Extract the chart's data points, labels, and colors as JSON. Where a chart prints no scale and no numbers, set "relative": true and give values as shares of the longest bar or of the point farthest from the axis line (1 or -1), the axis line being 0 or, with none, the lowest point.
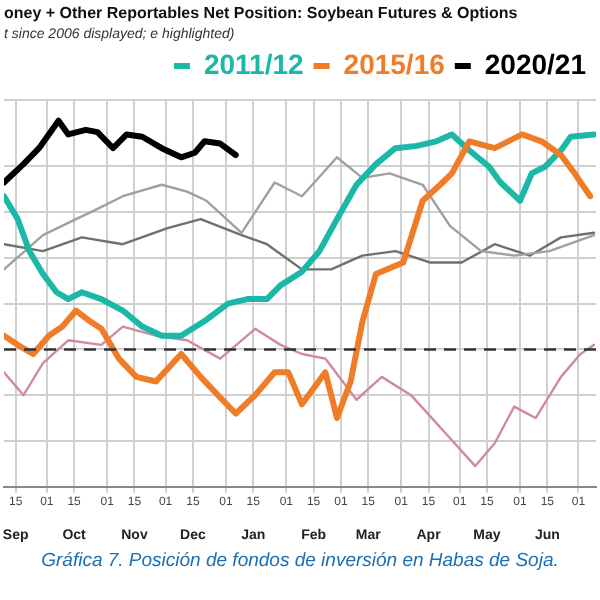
{
  "chart_data": {
    "type": "line",
    "title": "oney + Other Reportables Net Position: Soybean Futures & Options",
    "subtitle": "t since 2006 displayed; e highlighted)",
    "relative": true,
    "grid": true,
    "legend": "top right",
    "marker": "none",
    "line_style": "solid",
    "xlim": [
      "2020-09-09",
      "2021-07-10"
    ],
    "xticks": [
      {
        "value": "2020-09-15",
        "label": "15"
      },
      {
        "value": "2020-10-01",
        "label": "01"
      },
      {
        "value": "2020-10-15",
        "label": "15"
      },
      {
        "value": "2020-11-01",
        "label": "01"
      },
      {
        "value": "2020-11-15",
        "label": "15"
      },
      {
        "value": "2020-12-01",
        "label": "01"
      },
      {
        "value": "2020-12-15",
        "label": "15"
      },
      {
        "value": "2021-01-01",
        "label": "01"
      },
      {
        "value": "2021-01-15",
        "label": "15"
      },
      {
        "value": "2021-02-01",
        "label": "01"
      },
      {
        "value": "2021-02-15",
        "label": "15"
      },
      {
        "value": "2021-03-01",
        "label": "01"
      },
      {
        "value": "2021-03-15",
        "label": "15"
      },
      {
        "value": "2021-04-01",
        "label": "01"
      },
      {
        "value": "2021-04-15",
        "label": "15"
      },
      {
        "value": "2021-05-01",
        "label": "01"
      },
      {
        "value": "2021-05-15",
        "label": "15"
      },
      {
        "value": "2021-06-01",
        "label": "01"
      },
      {
        "value": "2021-06-15",
        "label": "15"
      },
      {
        "value": "2021-07-01",
        "label": "01"
      }
    ],
    "x2lim": [
      "2020-09-09",
      "2021-07-10"
    ],
    "x2ticks": [
      {
        "value": "2020-09-15",
        "label": "Sep"
      },
      {
        "value": "2020-10-15",
        "label": "Oct"
      },
      {
        "value": "2020-11-15",
        "label": "Nov"
      },
      {
        "value": "2020-12-15",
        "label": "Dec"
      },
      {
        "value": "2021-01-15",
        "label": "Jan"
      },
      {
        "value": "2021-02-15",
        "label": "Feb"
      },
      {
        "value": "2021-03-15",
        "label": "Mar"
      },
      {
        "value": "2021-04-15",
        "label": "Apr"
      },
      {
        "value": "2021-05-15",
        "label": "May"
      },
      {
        "value": "2021-06-15",
        "label": "Jun"
      }
    ],
    "ref_lines": [
      {
        "axis": "y",
        "value": 0,
        "color": "#333333",
        "line_style": "dashed"
      }
    ],
    "annotations": [
      "Gráfica 7. Posición de fondos de inversión en Habas de Soja."
    ],
    "series": [
      {
        "color": "#a0a0a0",
        "x": [
          "2020-09-09",
          "2020-09-29",
          "2020-10-16",
          "2020-10-26",
          "2020-11-09",
          "2020-11-29",
          "2020-12-12",
          "2020-12-22",
          "2021-01-09",
          "2021-01-26",
          "2021-02-09",
          "2021-02-27",
          "2021-03-12",
          "2021-03-26",
          "2021-04-12",
          "2021-04-26",
          "2021-05-12",
          "2021-05-29",
          "2021-06-16",
          "2021-07-09"
        ],
        "values": [
          0.35,
          0.5,
          0.57,
          0.61,
          0.67,
          0.72,
          0.69,
          0.65,
          0.51,
          0.73,
          0.67,
          0.84,
          0.75,
          0.77,
          0.72,
          0.54,
          0.43,
          0.41,
          0.43,
          0.5
        ]
      },
      {
        "color": "#707070",
        "x": [
          "2020-09-09",
          "2020-09-29",
          "2020-10-19",
          "2020-11-09",
          "2020-12-02",
          "2020-12-19",
          "2021-01-09",
          "2021-01-22",
          "2021-02-09",
          "2021-02-24",
          "2021-03-12",
          "2021-03-29",
          "2021-04-16",
          "2021-05-02",
          "2021-05-19",
          "2021-06-06",
          "2021-06-22",
          "2021-07-09"
        ],
        "values": [
          0.46,
          0.43,
          0.49,
          0.46,
          0.53,
          0.57,
          0.5,
          0.46,
          0.35,
          0.35,
          0.41,
          0.43,
          0.38,
          0.38,
          0.46,
          0.41,
          0.49,
          0.51
        ]
      },
      {
        "color": "#d08aa0",
        "x": [
          "2020-09-09",
          "2020-09-19",
          "2020-09-29",
          "2020-10-12",
          "2020-10-29",
          "2020-11-09",
          "2020-11-26",
          "2020-12-12",
          "2020-12-29",
          "2021-01-16",
          "2021-01-29",
          "2021-02-09",
          "2021-02-21",
          "2021-03-09",
          "2021-03-22",
          "2021-04-06",
          "2021-04-22",
          "2021-05-09",
          "2021-05-19",
          "2021-05-29",
          "2021-06-09",
          "2021-06-22",
          "2021-07-02",
          "2021-07-09"
        ],
        "values": [
          -0.1,
          -0.2,
          -0.06,
          0.04,
          0.02,
          0.1,
          0.06,
          0.04,
          -0.04,
          0.09,
          0.02,
          -0.02,
          -0.04,
          -0.22,
          -0.12,
          -0.2,
          -0.35,
          -0.51,
          -0.41,
          -0.25,
          -0.3,
          -0.12,
          -0.02,
          0.02
        ]
      },
      {
        "name": "2020/21",
        "color": "#000000",
        "x": [
          "2020-09-09",
          "2020-09-19",
          "2020-09-27",
          "2020-10-07",
          "2020-10-12",
          "2020-10-21",
          "2020-10-27",
          "2020-11-04",
          "2020-11-11",
          "2020-11-19",
          "2020-11-29",
          "2020-12-09",
          "2020-12-16",
          "2020-12-21",
          "2020-12-29",
          "2021-01-06"
        ],
        "values": [
          0.73,
          0.81,
          0.88,
          1.0,
          0.94,
          0.96,
          0.95,
          0.88,
          0.94,
          0.93,
          0.88,
          0.84,
          0.86,
          0.91,
          0.9,
          0.85
        ]
      },
      {
        "name": "2015/16",
        "color": "#f07c28",
        "x": [
          "2020-09-09",
          "2020-09-16",
          "2020-09-24",
          "2020-10-02",
          "2020-10-09",
          "2020-10-16",
          "2020-10-22",
          "2020-10-29",
          "2020-11-07",
          "2020-11-16",
          "2020-11-26",
          "2020-12-09",
          "2020-12-19",
          "2020-12-29",
          "2021-01-06",
          "2021-01-16",
          "2021-01-26",
          "2021-02-02",
          "2021-02-09",
          "2021-02-15",
          "2021-02-21",
          "2021-02-27",
          "2021-03-06",
          "2021-03-12",
          "2021-03-19",
          "2021-04-02",
          "2021-04-12",
          "2021-04-21",
          "2021-04-27",
          "2021-05-06",
          "2021-05-19",
          "2021-06-02",
          "2021-06-12",
          "2021-06-22",
          "2021-06-29",
          "2021-07-07"
        ],
        "values": [
          0.06,
          0.02,
          -0.02,
          0.06,
          0.1,
          0.17,
          0.13,
          0.09,
          -0.04,
          -0.12,
          -0.14,
          -0.02,
          -0.12,
          -0.21,
          -0.28,
          -0.2,
          -0.1,
          -0.1,
          -0.24,
          -0.17,
          -0.1,
          -0.3,
          -0.14,
          0.12,
          0.33,
          0.38,
          0.65,
          0.72,
          0.77,
          0.91,
          0.88,
          0.94,
          0.91,
          0.85,
          0.77,
          0.67
        ]
      },
      {
        "name": "2011/12",
        "color": "#1bb8a8",
        "x": [
          "2020-09-09",
          "2020-09-16",
          "2020-09-22",
          "2020-09-29",
          "2020-10-06",
          "2020-10-12",
          "2020-10-19",
          "2020-10-29",
          "2020-11-09",
          "2020-11-19",
          "2020-11-29",
          "2020-12-09",
          "2020-12-22",
          "2021-01-02",
          "2021-01-12",
          "2021-01-22",
          "2021-01-29",
          "2021-02-09",
          "2021-02-18",
          "2021-02-27",
          "2021-03-09",
          "2021-03-19",
          "2021-03-29",
          "2021-04-09",
          "2021-04-19",
          "2021-04-27",
          "2021-05-06",
          "2021-05-16",
          "2021-05-22",
          "2021-06-01",
          "2021-06-07",
          "2021-06-14",
          "2021-06-22",
          "2021-06-27",
          "2021-07-09"
        ],
        "values": [
          0.67,
          0.57,
          0.43,
          0.33,
          0.25,
          0.22,
          0.25,
          0.22,
          0.17,
          0.1,
          0.06,
          0.06,
          0.13,
          0.2,
          0.22,
          0.22,
          0.28,
          0.34,
          0.43,
          0.57,
          0.72,
          0.81,
          0.88,
          0.89,
          0.91,
          0.94,
          0.87,
          0.8,
          0.73,
          0.65,
          0.77,
          0.8,
          0.87,
          0.93,
          0.94
        ]
      }
    ]
  }
}
